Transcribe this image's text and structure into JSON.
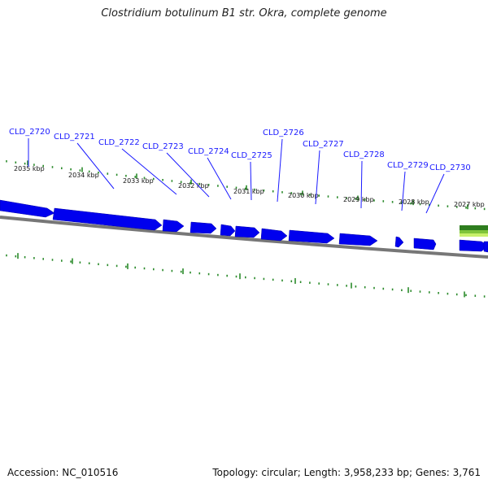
{
  "title": "Clostridium botulinum B1 str. Okra, complete genome",
  "footer": {
    "accession": "Accession: NC_010516",
    "summary": "Topology: circular; Length: 3,958,233 bp; Genes: 3,761"
  },
  "colors": {
    "gene": "#0000ee",
    "gene_label": "#1a1aff",
    "backbone": "#777777",
    "tick": "#2a8a2a",
    "feature_dark": "#2e7d1e",
    "feature_light": "#c8f06a"
  },
  "genes": [
    "CLD_2720",
    "CLD_2721",
    "CLD_2722",
    "CLD_2723",
    "CLD_2724",
    "CLD_2725",
    "CLD_2726",
    "CLD_2727",
    "CLD_2728",
    "CLD_2729",
    "CLD_2730"
  ],
  "scale": {
    "unit": "kbp",
    "labels": [
      "2035 kbp",
      "2034 kbp",
      "2033 kbp",
      "2032 kbp",
      "2031 kbp",
      "2030 kbp",
      "2029 kbp",
      "2028 kbp",
      "2027 kbp"
    ]
  }
}
